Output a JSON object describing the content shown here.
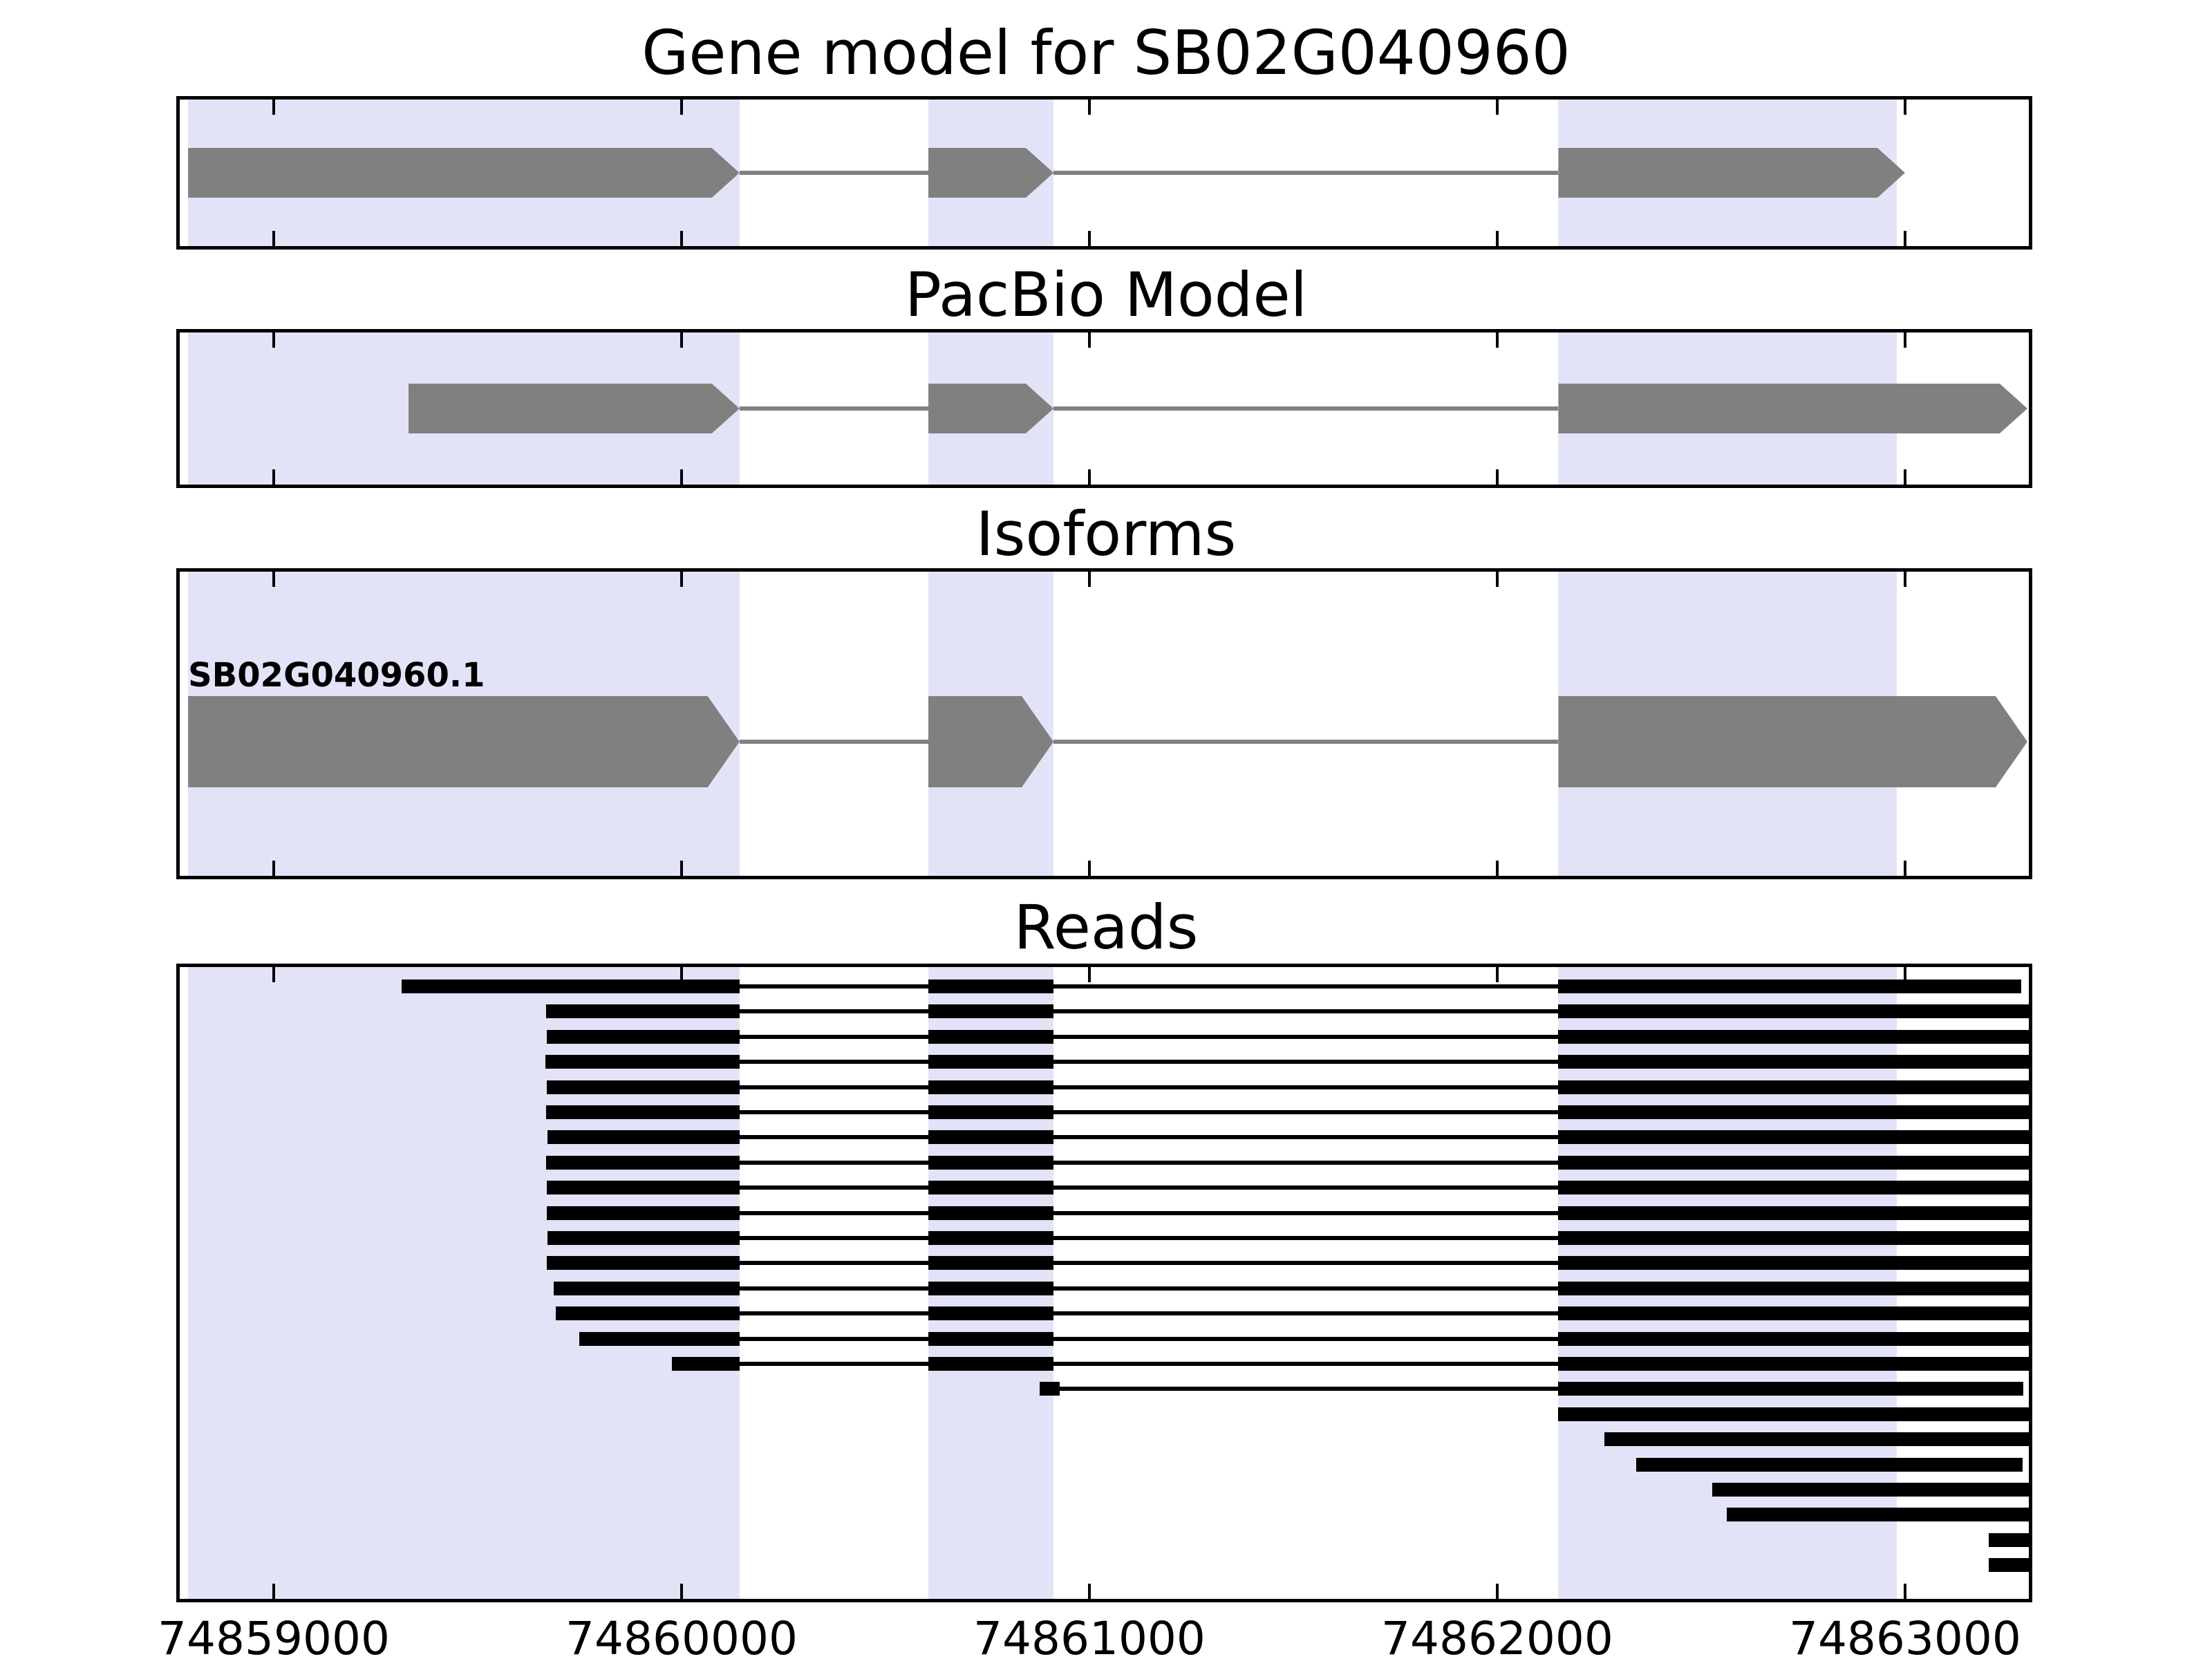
{
  "figure": {
    "colors": {
      "background": "#ffffff",
      "highlight_band": "#E3E3F8",
      "exon_fill": "#808080",
      "intron_line": "#808080",
      "read_fill": "#000000",
      "border": "#000000",
      "text": "#000000"
    }
  },
  "chart_data": {
    "type": "genome-tracks",
    "x_axis": {
      "domain": [
        74858761,
        74863312
      ],
      "ticks": [
        {
          "bp": 74859000,
          "label": "74859000"
        },
        {
          "bp": 74860000,
          "label": "74860000"
        },
        {
          "bp": 74861000,
          "label": "74861000"
        },
        {
          "bp": 74862000,
          "label": "74862000"
        },
        {
          "bp": 74863000,
          "label": "74863000"
        }
      ],
      "grid": false,
      "tick_marks": "inside-top-and-bottom"
    },
    "highlight_regions": [
      {
        "start": 74858790,
        "end": 74860142
      },
      {
        "start": 74860605,
        "end": 74860912
      },
      {
        "start": 74862150,
        "end": 74862980
      }
    ],
    "panels": [
      {
        "id": "gene_model",
        "title": "Gene model for SB02G040960",
        "transcripts": [
          {
            "label": "",
            "strand": "+",
            "exons": [
              [
                74858790,
                74860142
              ],
              [
                74860605,
                74860912
              ],
              [
                74862150,
                74863000
              ]
            ]
          }
        ]
      },
      {
        "id": "pacbio",
        "title": "PacBio Model",
        "transcripts": [
          {
            "label": "",
            "strand": "+",
            "exons": [
              [
                74859330,
                74860142
              ],
              [
                74860605,
                74860912
              ],
              [
                74862150,
                74863300
              ]
            ]
          }
        ]
      },
      {
        "id": "isoforms",
        "title": "Isoforms",
        "transcripts": [
          {
            "label": "SB02G040960.1",
            "strand": "+",
            "exons": [
              [
                74858790,
                74860142
              ],
              [
                74860605,
                74860912
              ],
              [
                74862150,
                74863300
              ]
            ]
          }
        ]
      },
      {
        "id": "reads",
        "title": "Reads",
        "reads": [
          {
            "blocks": [
              [
                74859313,
                74860142
              ],
              [
                74860605,
                74860912
              ],
              [
                74862150,
                74863285
              ]
            ]
          },
          {
            "blocks": [
              [
                74859668,
                74860142
              ],
              [
                74860605,
                74860912
              ],
              [
                74862150,
                74863312
              ]
            ]
          },
          {
            "blocks": [
              [
                74859670,
                74860142
              ],
              [
                74860605,
                74860912
              ],
              [
                74862150,
                74863312
              ]
            ]
          },
          {
            "blocks": [
              [
                74859666,
                74860142
              ],
              [
                74860605,
                74860912
              ],
              [
                74862150,
                74863312
              ]
            ]
          },
          {
            "blocks": [
              [
                74859670,
                74860142
              ],
              [
                74860605,
                74860912
              ],
              [
                74862150,
                74863312
              ]
            ]
          },
          {
            "blocks": [
              [
                74859668,
                74860142
              ],
              [
                74860605,
                74860912
              ],
              [
                74862150,
                74863312
              ]
            ]
          },
          {
            "blocks": [
              [
                74859671,
                74860142
              ],
              [
                74860605,
                74860912
              ],
              [
                74862150,
                74863312
              ]
            ]
          },
          {
            "blocks": [
              [
                74859667,
                74860142
              ],
              [
                74860605,
                74860912
              ],
              [
                74862150,
                74863312
              ]
            ]
          },
          {
            "blocks": [
              [
                74859670,
                74860142
              ],
              [
                74860605,
                74860912
              ],
              [
                74862150,
                74863312
              ]
            ]
          },
          {
            "blocks": [
              [
                74859669,
                74860142
              ],
              [
                74860605,
                74860912
              ],
              [
                74862150,
                74863312
              ]
            ]
          },
          {
            "blocks": [
              [
                74859672,
                74860142
              ],
              [
                74860605,
                74860912
              ],
              [
                74862150,
                74863312
              ]
            ]
          },
          {
            "blocks": [
              [
                74859670,
                74860142
              ],
              [
                74860605,
                74860912
              ],
              [
                74862150,
                74863312
              ]
            ]
          },
          {
            "blocks": [
              [
                74859686,
                74860142
              ],
              [
                74860605,
                74860912
              ],
              [
                74862150,
                74863312
              ]
            ]
          },
          {
            "blocks": [
              [
                74859691,
                74860142
              ],
              [
                74860605,
                74860912
              ],
              [
                74862150,
                74863312
              ]
            ]
          },
          {
            "blocks": [
              [
                74859749,
                74860142
              ],
              [
                74860605,
                74860912
              ],
              [
                74862150,
                74863312
              ]
            ]
          },
          {
            "blocks": [
              [
                74859976,
                74860142
              ],
              [
                74860605,
                74860912
              ],
              [
                74862150,
                74863312
              ]
            ]
          },
          {
            "blocks": [
              [
                74860878,
                74860928
              ],
              [
                74862150,
                74863290
              ]
            ]
          },
          {
            "blocks": [
              [
                74862150,
                74863312
              ]
            ]
          },
          {
            "blocks": [
              [
                74862262,
                74863312
              ]
            ]
          },
          {
            "blocks": [
              [
                74862341,
                74863288
              ]
            ]
          },
          {
            "blocks": [
              [
                74862527,
                74863312
              ]
            ]
          },
          {
            "blocks": [
              [
                74862563,
                74863312
              ]
            ]
          },
          {
            "blocks": [
              [
                74863205,
                74863312
              ]
            ]
          },
          {
            "blocks": [
              [
                74863205,
                74863312
              ]
            ]
          }
        ]
      }
    ]
  }
}
